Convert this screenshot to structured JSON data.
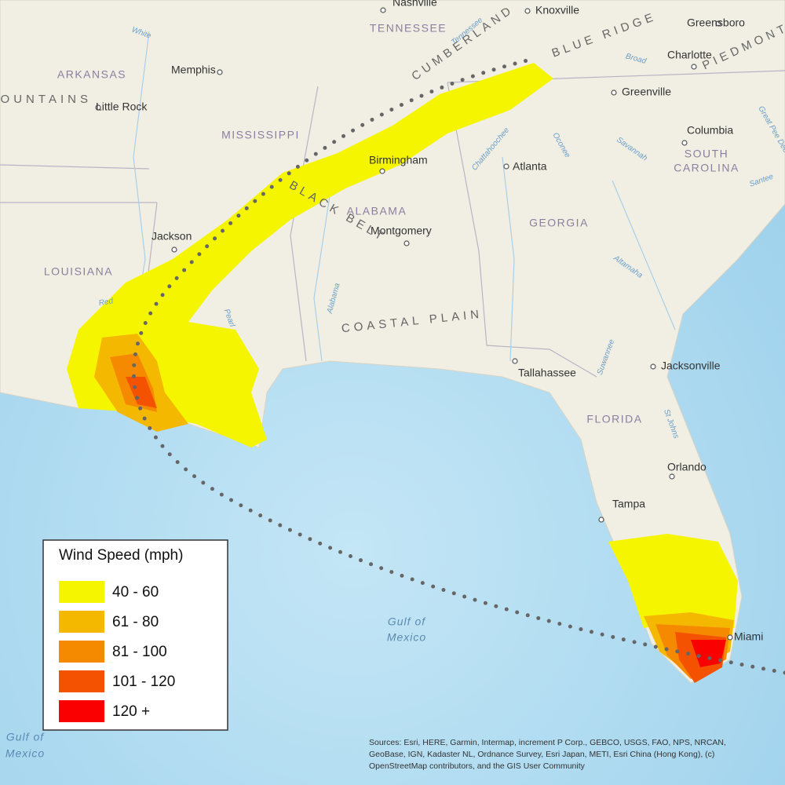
{
  "labels": {
    "states": [
      "TENNESSEE",
      "ARKANSAS",
      "MISSISSIPPI",
      "ALABAMA",
      "GEORGIA",
      "LOUISIANA",
      "SOUTH",
      "CAROLINA",
      "FLORIDA"
    ],
    "cities": [
      "Nashville",
      "Knoxville",
      "Greensboro",
      "Memphis",
      "Charlotte",
      "Little Rock",
      "Greenville",
      "Columbia",
      "Birmingham",
      "Atlanta",
      "Jackson",
      "Montgomery",
      "Tallahassee",
      "Jacksonville",
      "Orlando",
      "Tampa",
      "Miami"
    ],
    "regions": [
      "CUMBERLAND",
      "BLUE RIDGE",
      "PIEDMONT",
      "MOUNTAINS",
      "BLACK BELT",
      "COASTAL PLAIN"
    ],
    "rivers": [
      "White",
      "Tennessee",
      "Broad",
      "Savannah",
      "Oconee",
      "Chattahoochee",
      "Alabama",
      "Pearl",
      "Red",
      "Altamaha",
      "Suwannee",
      "St Johns",
      "Great Pee Dee",
      "Santee"
    ],
    "water": [
      "Gulf of",
      "Mexico",
      "Gulf of",
      "Mexico"
    ]
  },
  "legend": {
    "title": "Wind Speed (mph)",
    "items": [
      {
        "label": "40 - 60",
        "color": "#f5f500"
      },
      {
        "label": "61 - 80",
        "color": "#f5b800"
      },
      {
        "label": "81 - 100",
        "color": "#f58a00"
      },
      {
        "label": "101 - 120",
        "color": "#f55200"
      },
      {
        "label": "120 +",
        "color": "#fa0000"
      }
    ]
  },
  "attribution": [
    "Sources: Esri, HERE, Garmin, Intermap, increment P Corp., GEBCO, USGS, FAO, NPS, NRCAN,",
    "GeoBase, IGN, Kadaster NL, Ordnance Survey, Esri Japan, METI, Esri China (Hong Kong), (c)",
    "OpenStreetMap contributors, and the GIS User Community"
  ]
}
